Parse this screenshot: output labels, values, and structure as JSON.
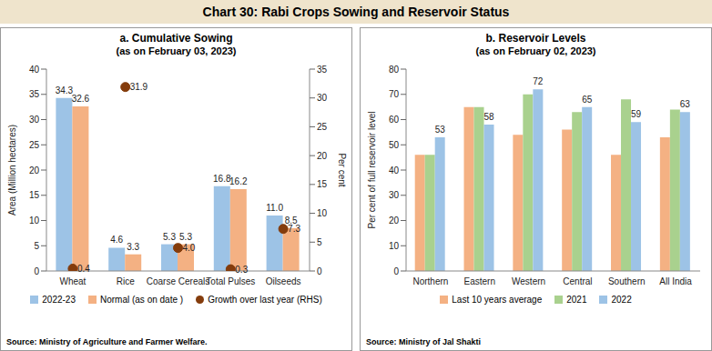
{
  "title": "Chart 30: Rabi Crops Sowing and Reservoir Status",
  "chart_data": [
    {
      "type": "bar",
      "title": "a. Cumulative Sowing",
      "subtitle": "(as on February 03, 2023)",
      "categories": [
        "Wheat",
        "Rice",
        "Coarse Cereals",
        "Total Pulses",
        "Oilseeds"
      ],
      "series": [
        {
          "name": "2022-23",
          "color": "#9dc3e6",
          "values": [
            34.3,
            4.6,
            5.3,
            16.8,
            11.0
          ],
          "value_labels": [
            "34.3",
            "4.6",
            "5.3",
            "16.8",
            "11.0"
          ]
        },
        {
          "name": "Normal (as on date )",
          "color": "#f4b183",
          "values": [
            32.6,
            3.3,
            5.3,
            16.2,
            8.5
          ]
        },
        {
          "name": "Growth over last year (RHS)",
          "type": "scatter",
          "axis": "y2",
          "color": "#843c0c",
          "marker": "circle",
          "values": [
            0.4,
            31.9,
            4.0,
            0.3,
            7.3
          ],
          "value_labels": [
            "0.4",
            "31.9",
            "4.0",
            "0.3",
            "7.3"
          ]
        }
      ],
      "ylabel": "Area (Million hectares)",
      "y2label": "Per cent",
      "ylim": [
        0,
        40
      ],
      "yticks": [
        0,
        5,
        10,
        15,
        20,
        25,
        30,
        35,
        40
      ],
      "y2lim": [
        0,
        35
      ],
      "y2ticks": [
        0,
        5,
        10,
        15,
        20,
        25,
        30,
        35
      ],
      "data_labels": true,
      "source": "Source: Ministry of Agriculture and Farmer Welfare."
    },
    {
      "type": "bar",
      "title": "b. Reservoir Levels",
      "subtitle": "(as on February 02, 2023)",
      "categories": [
        "Northern",
        "Eastern",
        "Western",
        "Central",
        "Southern",
        "All India"
      ],
      "series": [
        {
          "name": "Last 10 years average",
          "color": "#f4b183",
          "values": [
            46,
            65,
            54,
            56,
            46,
            53
          ]
        },
        {
          "name": "2021",
          "color": "#a9d18e",
          "values": [
            46,
            65,
            70,
            63,
            68,
            64
          ]
        },
        {
          "name": "2022",
          "color": "#9dc3e6",
          "values": [
            53,
            58,
            72,
            65,
            59,
            63
          ],
          "data_labels": true
        }
      ],
      "ylabel": "Per cent of full reservoir level",
      "ylim": [
        0,
        80
      ],
      "yticks": [
        0,
        10,
        20,
        30,
        40,
        50,
        60,
        70,
        80
      ],
      "source": "Source: Ministry of Jal Shakti"
    }
  ]
}
